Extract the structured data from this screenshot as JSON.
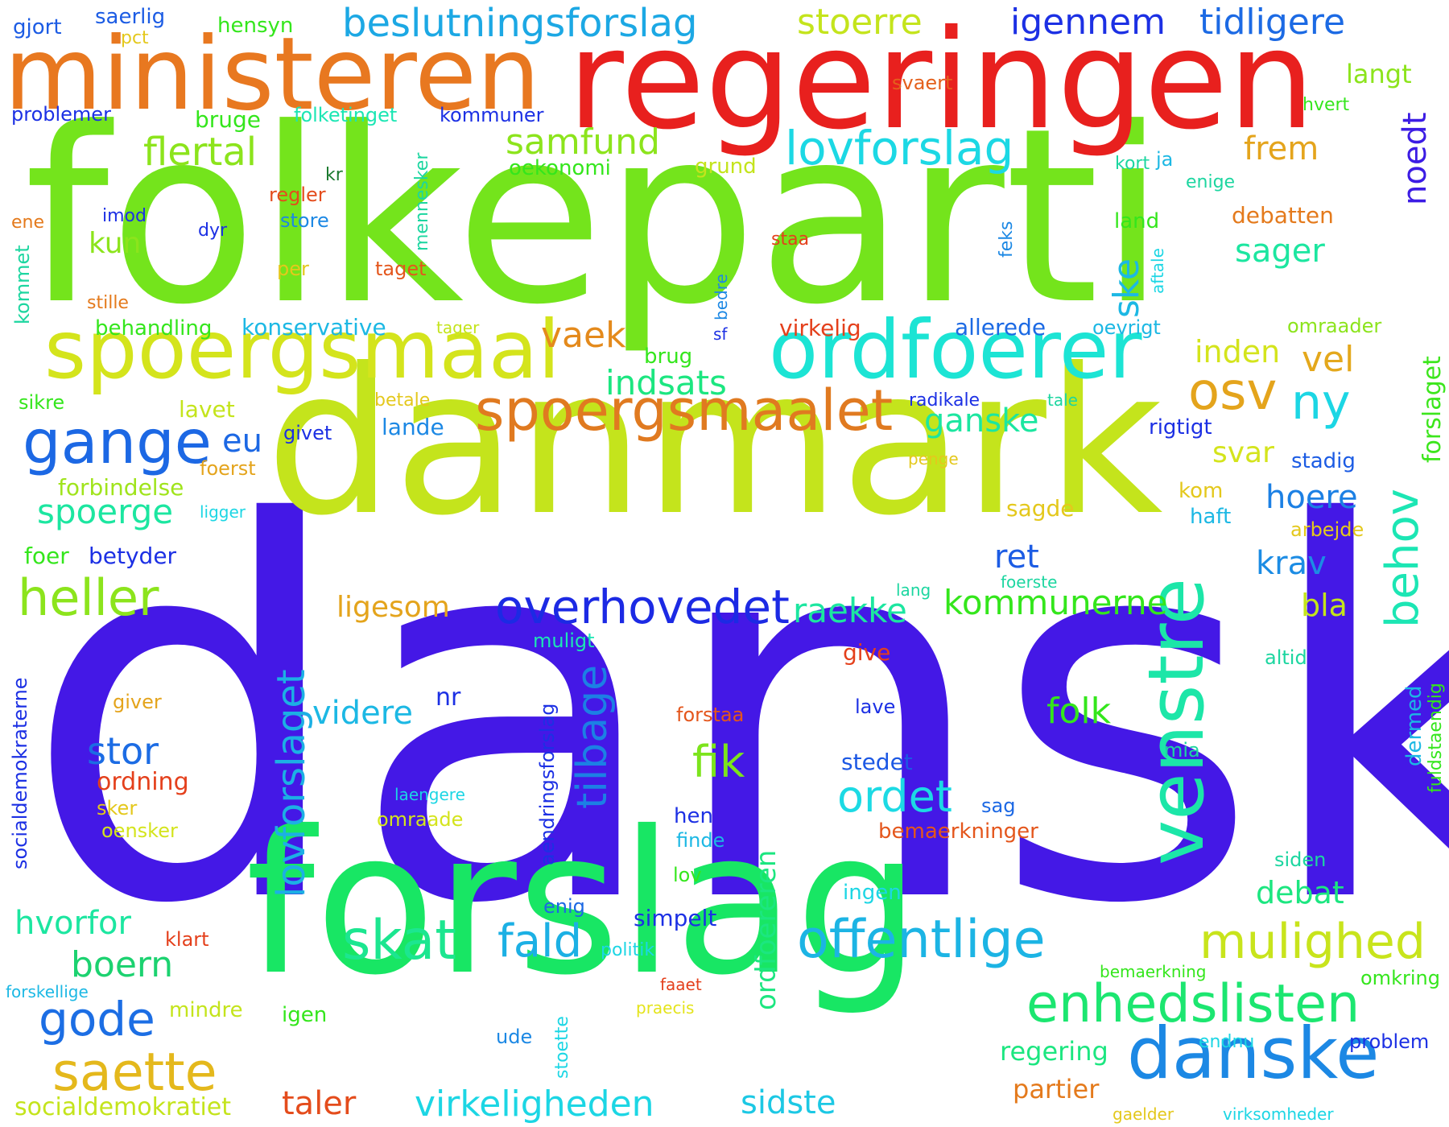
{
  "words": [
    {
      "text": "dansk",
      "color": "#4418e6"
    },
    {
      "text": "folkeparti",
      "color": "#74e41c"
    },
    {
      "text": "danmark",
      "color": "#c4e41c"
    },
    {
      "text": "forslag",
      "color": "#18e664"
    },
    {
      "text": "regeringen",
      "color": "#e8201e"
    },
    {
      "text": "ministeren",
      "color": "#e87820"
    },
    {
      "text": "spoergsmaal",
      "color": "#d4e41c"
    },
    {
      "text": "ordfoerer",
      "color": "#1ce4d4"
    },
    {
      "text": "spoergsmaalet",
      "color": "#e07a20"
    },
    {
      "text": "venstre",
      "color": "#1ce6a8"
    },
    {
      "text": "danske",
      "color": "#1c88e4"
    },
    {
      "text": "gange",
      "color": "#1c68e4"
    },
    {
      "text": "lovforslag",
      "color": "#1cd8e4"
    },
    {
      "text": "beslutningsforslag",
      "color": "#1ca8e4"
    },
    {
      "text": "offentlige",
      "color": "#1cb4e4"
    },
    {
      "text": "enhedslisten",
      "color": "#1ce670"
    },
    {
      "text": "overhovedet",
      "color": "#1c2ae4"
    },
    {
      "text": "saette",
      "color": "#e4b81c"
    },
    {
      "text": "mulighed",
      "color": "#c8e41c"
    },
    {
      "text": "heller",
      "color": "#8ce41c"
    },
    {
      "text": "skat",
      "color": "#1ce690"
    },
    {
      "text": "fald",
      "color": "#1cb0e4"
    },
    {
      "text": "gode",
      "color": "#1c6ee4"
    },
    {
      "text": "lovforslaget",
      "color": "#1cb0e4"
    },
    {
      "text": "tilbage",
      "color": "#1c80e4"
    },
    {
      "text": "ordet",
      "color": "#1cdae4"
    },
    {
      "text": "fik",
      "color": "#7ce41c"
    },
    {
      "text": "osv",
      "color": "#e4a41c"
    },
    {
      "text": "ny",
      "color": "#1cd6e4"
    },
    {
      "text": "behov",
      "color": "#1ce6b4"
    },
    {
      "text": "igennem",
      "color": "#1c30e4"
    },
    {
      "text": "tidligere",
      "color": "#1c6ae4"
    },
    {
      "text": "stoerre",
      "color": "#c4e41c"
    },
    {
      "text": "samfund",
      "color": "#8ce41c"
    },
    {
      "text": "flertal",
      "color": "#8ce41c"
    },
    {
      "text": "vaek",
      "color": "#e48a1c"
    },
    {
      "text": "vel",
      "color": "#e4a81c"
    },
    {
      "text": "indsats",
      "color": "#1ce680"
    },
    {
      "text": "ganske",
      "color": "#1ce6a0"
    },
    {
      "text": "raekke",
      "color": "#1ce6a0"
    },
    {
      "text": "kommunerne",
      "color": "#34e61c"
    },
    {
      "text": "stor",
      "color": "#1c6ce4"
    },
    {
      "text": "spoerge",
      "color": "#1ce6a0"
    },
    {
      "text": "boern",
      "color": "#1cd270"
    },
    {
      "text": "hvorfor",
      "color": "#1ce6a0"
    },
    {
      "text": "folk",
      "color": "#34e61c"
    },
    {
      "text": "videre",
      "color": "#1cb8e4"
    },
    {
      "text": "virkeligheden",
      "color": "#1cd6e4"
    },
    {
      "text": "sidste",
      "color": "#1cc8e4"
    },
    {
      "text": "taler",
      "color": "#e44c1c"
    },
    {
      "text": "socialdemokratiet",
      "color": "#c4e41c"
    },
    {
      "text": "ordfoereren",
      "color": "#1ce680"
    },
    {
      "text": "ligesom",
      "color": "#e4a41c"
    },
    {
      "text": "hoere",
      "color": "#1c80e4"
    },
    {
      "text": "krav",
      "color": "#1c8ce4"
    },
    {
      "text": "ret",
      "color": "#1c5ce4"
    },
    {
      "text": "debat",
      "color": "#1ce680"
    },
    {
      "text": "frem",
      "color": "#e4a41c"
    },
    {
      "text": "sager",
      "color": "#1ce6a0"
    },
    {
      "text": "ske",
      "color": "#1cb8e4"
    },
    {
      "text": "noedt",
      "color": "#3c1ce4"
    },
    {
      "text": "inden",
      "color": "#d4e41c"
    },
    {
      "text": "svar",
      "color": "#d4e41c"
    },
    {
      "text": "langt",
      "color": "#8ce41c"
    },
    {
      "text": "kun",
      "color": "#8ce41c"
    },
    {
      "text": "eu",
      "color": "#1c68e4"
    },
    {
      "text": "bla",
      "color": "#c4e41c"
    },
    {
      "text": "regering",
      "color": "#1ce680"
    },
    {
      "text": "partier",
      "color": "#e47a1c"
    },
    {
      "text": "forslaget",
      "color": "#3ce61c"
    },
    {
      "text": "konservative",
      "color": "#1cb8e4"
    },
    {
      "text": "behandling",
      "color": "#34e61c"
    },
    {
      "text": "allerede",
      "color": "#1c6ae4"
    },
    {
      "text": "bruge",
      "color": "#34e61c"
    },
    {
      "text": "forbindelse",
      "color": "#a0e41c"
    },
    {
      "text": "debatten",
      "color": "#e47a1c"
    },
    {
      "text": "lavet",
      "color": "#c4e41c"
    },
    {
      "text": "lande",
      "color": "#1c88e4"
    },
    {
      "text": "sagde",
      "color": "#e4c81c"
    },
    {
      "text": "betyder",
      "color": "#1c30e4"
    },
    {
      "text": "foer",
      "color": "#34e61c"
    },
    {
      "text": "stedet",
      "color": "#1c58e4"
    },
    {
      "text": "ordning",
      "color": "#e4401c"
    },
    {
      "text": "simpelt",
      "color": "#1c30e4"
    },
    {
      "text": "omraade",
      "color": "#d4e41c"
    },
    {
      "text": "bemaerkninger",
      "color": "#e4561c"
    },
    {
      "text": "oekonomi",
      "color": "#34e61c"
    },
    {
      "text": "folketinget",
      "color": "#1ce6b4"
    },
    {
      "text": "kommuner",
      "color": "#1c30e4"
    },
    {
      "text": "problemer",
      "color": "#1c30e4"
    },
    {
      "text": "saerlig",
      "color": "#1c5ce4"
    },
    {
      "text": "hensyn",
      "color": "#34e61c"
    },
    {
      "text": "gjort",
      "color": "#1c5ce4"
    },
    {
      "text": "pct",
      "color": "#e4c81c"
    },
    {
      "text": "svaert",
      "color": "#e4601c"
    },
    {
      "text": "hvert",
      "color": "#34e61c"
    },
    {
      "text": "grund",
      "color": "#c4e41c"
    },
    {
      "text": "kort",
      "color": "#1cd6a0"
    },
    {
      "text": "ja",
      "color": "#1cb8e4"
    },
    {
      "text": "enige",
      "color": "#1cd6a0"
    },
    {
      "text": "mennesker",
      "color": "#1cd6a0"
    },
    {
      "text": "kr",
      "color": "#1c7a30"
    },
    {
      "text": "regler",
      "color": "#e44c1c"
    },
    {
      "text": "imod",
      "color": "#1c30e4"
    },
    {
      "text": "store",
      "color": "#1c88e4"
    },
    {
      "text": "dyr",
      "color": "#1c30e4"
    },
    {
      "text": "ene",
      "color": "#e47a1c"
    },
    {
      "text": "staa",
      "color": "#e4401c"
    },
    {
      "text": "feks",
      "color": "#1c88e4"
    },
    {
      "text": "land",
      "color": "#34e61c"
    },
    {
      "text": "aftale",
      "color": "#1cd6e4"
    },
    {
      "text": "taget",
      "color": "#e4561c"
    },
    {
      "text": "per",
      "color": "#e4c81c"
    },
    {
      "text": "stille",
      "color": "#e47a1c"
    },
    {
      "text": "kommet",
      "color": "#1cd6a0"
    },
    {
      "text": "bedre",
      "color": "#1c88e4"
    },
    {
      "text": "sf",
      "color": "#1c30e4"
    },
    {
      "text": "tager",
      "color": "#c4e41c"
    },
    {
      "text": "virkelig",
      "color": "#e4401c"
    },
    {
      "text": "oevrigt",
      "color": "#1cb8e4"
    },
    {
      "text": "omraader",
      "color": "#8ce41c"
    },
    {
      "text": "brug",
      "color": "#34e61c"
    },
    {
      "text": "sikre",
      "color": "#34e61c"
    },
    {
      "text": "betale",
      "color": "#e4c81c"
    },
    {
      "text": "radikale",
      "color": "#1c30e4"
    },
    {
      "text": "tale",
      "color": "#1cd6a0"
    },
    {
      "text": "givet",
      "color": "#1c30e4"
    },
    {
      "text": "rigtigt",
      "color": "#1c30e4"
    },
    {
      "text": "foerst",
      "color": "#e4a41c"
    },
    {
      "text": "penge",
      "color": "#e4c81c"
    },
    {
      "text": "stadig",
      "color": "#1c5ce4"
    },
    {
      "text": "ligger",
      "color": "#1cd6e4"
    },
    {
      "text": "kom",
      "color": "#e4c81c"
    },
    {
      "text": "haft",
      "color": "#1cb8e4"
    },
    {
      "text": "arbejde",
      "color": "#e4c81c"
    },
    {
      "text": "lang",
      "color": "#1cd6a0"
    },
    {
      "text": "foerste",
      "color": "#1cd6a0"
    },
    {
      "text": "muligt",
      "color": "#1ce6b4"
    },
    {
      "text": "give",
      "color": "#e4401c"
    },
    {
      "text": "altid",
      "color": "#1cd6a0"
    },
    {
      "text": "socialdemokraterne",
      "color": "#1c30e4"
    },
    {
      "text": "aendringsforslag",
      "color": "#1c30e4"
    },
    {
      "text": "nr",
      "color": "#1c30e4"
    },
    {
      "text": "giver",
      "color": "#e4a41c"
    },
    {
      "text": "lave",
      "color": "#1c30e4"
    },
    {
      "text": "forstaa",
      "color": "#e4561c"
    },
    {
      "text": "mia",
      "color": "#1cd6a0"
    },
    {
      "text": "dermed",
      "color": "#1cb8e4"
    },
    {
      "text": "fuldstaendig",
      "color": "#34e61c"
    },
    {
      "text": "sker",
      "color": "#e4c81c"
    },
    {
      "text": "oensker",
      "color": "#d4e41c"
    },
    {
      "text": "laengere",
      "color": "#1cd6e4"
    },
    {
      "text": "hen",
      "color": "#1c30e4"
    },
    {
      "text": "sag",
      "color": "#1c68e4"
    },
    {
      "text": "finde",
      "color": "#1cb8e4"
    },
    {
      "text": "lov",
      "color": "#34e61c"
    },
    {
      "text": "ingen",
      "color": "#1cd6e4"
    },
    {
      "text": "siden",
      "color": "#1cd6a0"
    },
    {
      "text": "enig",
      "color": "#1c68e4"
    },
    {
      "text": "klart",
      "color": "#e4401c"
    },
    {
      "text": "politik",
      "color": "#1cd6e4"
    },
    {
      "text": "bemaerkning",
      "color": "#34e61c"
    },
    {
      "text": "omkring",
      "color": "#34e61c"
    },
    {
      "text": "forskellige",
      "color": "#1cb8e4"
    },
    {
      "text": "faaet",
      "color": "#e4401c"
    },
    {
      "text": "mindre",
      "color": "#c4e41c"
    },
    {
      "text": "igen",
      "color": "#34e61c"
    },
    {
      "text": "praecis",
      "color": "#e4e41c"
    },
    {
      "text": "problem",
      "color": "#1c30e4"
    },
    {
      "text": "ude",
      "color": "#1c88e4"
    },
    {
      "text": "stoette",
      "color": "#1cd6e4"
    },
    {
      "text": "endnu",
      "color": "#1cd6e4"
    },
    {
      "text": "gaelder",
      "color": "#e4c81c"
    },
    {
      "text": "virksomheder",
      "color": "#1cd6e4"
    }
  ]
}
